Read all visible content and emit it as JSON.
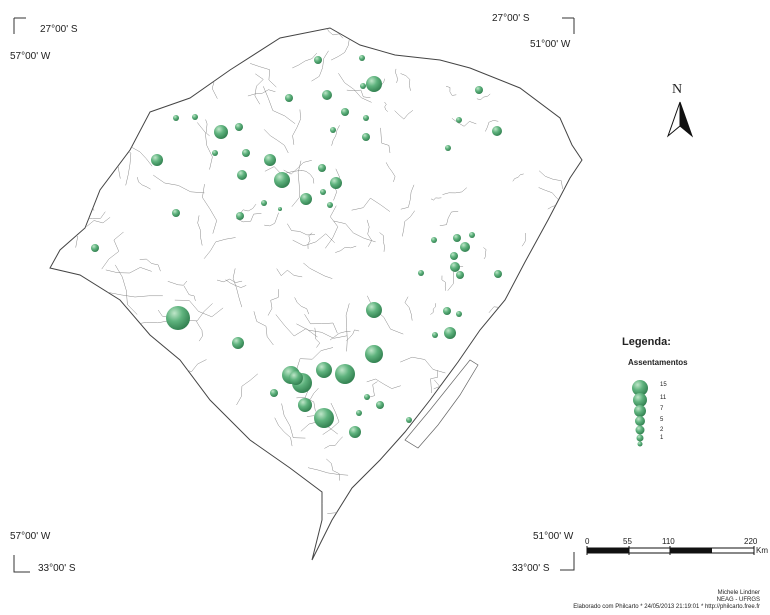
{
  "coordinates": {
    "top_left_lat": "27°00' S",
    "top_left_lon": "57°00' W",
    "top_right_lat": "27°00' S",
    "top_right_lon": "51°00' W",
    "bottom_left_lon": "57°00' W",
    "bottom_left_lat": "33°00' S",
    "bottom_right_lon": "51°00' W",
    "bottom_right_lat": "33°00' S"
  },
  "north_arrow": {
    "label": "N",
    "icon": "north-arrow-icon"
  },
  "legend": {
    "title": "Legenda:",
    "subtitle": "Assentamentos",
    "values": [
      "15",
      "11",
      "7",
      "5",
      "2",
      "1"
    ]
  },
  "scale_bar": {
    "labels": [
      "0",
      "55",
      "110",
      "220"
    ],
    "unit": "Km"
  },
  "credits": {
    "author": "Michele Lindner",
    "institution": "NEAG - UFRGS",
    "software": "Elaborado com Philcarto * 24/05/2013 21:19:01 * http://philcarto.free.fr"
  },
  "colors": {
    "bubble": "#3f9a62",
    "bubble_light": "#a9d9b8",
    "border": "#555555"
  }
}
